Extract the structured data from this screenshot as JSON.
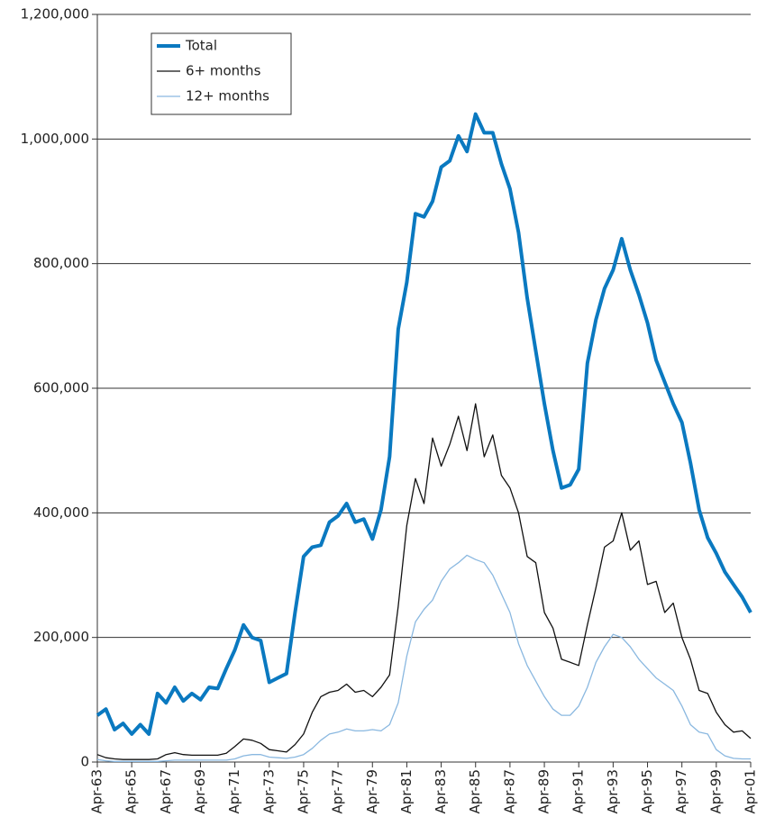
{
  "chart_data": {
    "type": "line",
    "x": [
      1963.25,
      1963.75,
      1964.25,
      1964.75,
      1965.25,
      1965.75,
      1966.25,
      1966.75,
      1967.25,
      1967.75,
      1968.25,
      1968.75,
      1969.25,
      1969.75,
      1970.25,
      1970.75,
      1971.25,
      1971.75,
      1972.25,
      1972.75,
      1973.25,
      1973.75,
      1974.25,
      1974.75,
      1975.25,
      1975.75,
      1976.25,
      1976.75,
      1977.25,
      1977.75,
      1978.25,
      1978.75,
      1979.25,
      1979.75,
      1980.25,
      1980.75,
      1981.25,
      1981.75,
      1982.25,
      1982.75,
      1983.25,
      1983.75,
      1984.25,
      1984.75,
      1985.25,
      1985.75,
      1986.25,
      1986.75,
      1987.25,
      1987.75,
      1988.25,
      1988.75,
      1989.25,
      1989.75,
      1990.25,
      1990.75,
      1991.25,
      1991.75,
      1992.25,
      1992.75,
      1993.25,
      1993.75,
      1994.25,
      1994.75,
      1995.25,
      1995.75,
      1996.25,
      1996.75,
      1997.25,
      1997.75,
      1998.25,
      1998.75,
      1999.25,
      1999.75,
      2000.25,
      2000.75,
      2001.25
    ],
    "series": [
      {
        "name": "Total",
        "color": "#0a79c0",
        "width": 4,
        "values": [
          75000,
          85000,
          52000,
          62000,
          45000,
          60000,
          45000,
          110000,
          95000,
          120000,
          98000,
          110000,
          100000,
          120000,
          118000,
          150000,
          180000,
          220000,
          200000,
          195000,
          128000,
          135000,
          142000,
          240000,
          330000,
          345000,
          348000,
          385000,
          395000,
          415000,
          385000,
          390000,
          358000,
          405000,
          490000,
          695000,
          770000,
          880000,
          875000,
          900000,
          955000,
          965000,
          1005000,
          980000,
          1040000,
          1010000,
          1010000,
          960000,
          920000,
          850000,
          745000,
          660000,
          575000,
          500000,
          440000,
          445000,
          470000,
          640000,
          710000,
          760000,
          790000,
          840000,
          790000,
          750000,
          705000,
          645000,
          610000,
          575000,
          545000,
          480000,
          405000,
          360000,
          335000,
          305000,
          285000,
          265000,
          240000
        ]
      },
      {
        "name": "6+ months",
        "color": "#111111",
        "width": 1.3,
        "values": [
          12000,
          7000,
          5000,
          4000,
          4000,
          4000,
          4000,
          5000,
          12000,
          15000,
          12000,
          11000,
          11000,
          11000,
          11000,
          14000,
          25000,
          37000,
          35000,
          30000,
          20000,
          18000,
          16000,
          28000,
          45000,
          80000,
          105000,
          112000,
          115000,
          125000,
          112000,
          115000,
          105000,
          120000,
          140000,
          250000,
          380000,
          455000,
          415000,
          520000,
          475000,
          510000,
          555000,
          500000,
          575000,
          490000,
          525000,
          460000,
          440000,
          400000,
          330000,
          320000,
          240000,
          215000,
          165000,
          160000,
          155000,
          220000,
          280000,
          345000,
          355000,
          400000,
          340000,
          355000,
          285000,
          290000,
          240000,
          255000,
          200000,
          165000,
          115000,
          110000,
          80000,
          60000,
          48000,
          50000,
          38000
        ]
      },
      {
        "name": "12+ months",
        "color": "#8ab8e0",
        "width": 1.3,
        "values": [
          4000,
          2000,
          1000,
          1000,
          1000,
          1000,
          1000,
          1000,
          2000,
          3000,
          3000,
          3000,
          3000,
          3000,
          3000,
          3000,
          5000,
          10000,
          12000,
          12000,
          8000,
          7000,
          6000,
          8000,
          12000,
          22000,
          35000,
          45000,
          48000,
          53000,
          50000,
          50000,
          52000,
          50000,
          60000,
          95000,
          170000,
          225000,
          245000,
          260000,
          290000,
          310000,
          320000,
          332000,
          325000,
          320000,
          300000,
          270000,
          240000,
          190000,
          155000,
          130000,
          105000,
          85000,
          75000,
          75000,
          90000,
          120000,
          160000,
          185000,
          205000,
          200000,
          185000,
          165000,
          150000,
          135000,
          125000,
          115000,
          90000,
          60000,
          48000,
          45000,
          20000,
          10000,
          6000,
          5000,
          5000
        ]
      }
    ],
    "xlim": [
      1963.25,
      2001.25
    ],
    "xticks": [
      {
        "value": 1963.25,
        "label": "Apr-63"
      },
      {
        "value": 1965.25,
        "label": "Apr-65"
      },
      {
        "value": 1967.25,
        "label": "Apr-67"
      },
      {
        "value": 1969.25,
        "label": "Apr-69"
      },
      {
        "value": 1971.25,
        "label": "Apr-71"
      },
      {
        "value": 1973.25,
        "label": "Apr-73"
      },
      {
        "value": 1975.25,
        "label": "Apr-75"
      },
      {
        "value": 1977.25,
        "label": "Apr-77"
      },
      {
        "value": 1979.25,
        "label": "Apr-79"
      },
      {
        "value": 1981.25,
        "label": "Apr-81"
      },
      {
        "value": 1983.25,
        "label": "Apr-83"
      },
      {
        "value": 1985.25,
        "label": "Apr-85"
      },
      {
        "value": 1987.25,
        "label": "Apr-87"
      },
      {
        "value": 1989.25,
        "label": "Apr-89"
      },
      {
        "value": 1991.25,
        "label": "Apr-91"
      },
      {
        "value": 1993.25,
        "label": "Apr-93"
      },
      {
        "value": 1995.25,
        "label": "Apr-95"
      },
      {
        "value": 1997.25,
        "label": "Apr-97"
      },
      {
        "value": 1999.25,
        "label": "Apr-99"
      },
      {
        "value": 2001.25,
        "label": "Apr-01"
      }
    ],
    "ylim": [
      0,
      1200000
    ],
    "yticks": [
      0,
      {
        "value": 200000,
        "label": "200,000"
      },
      {
        "value": 400000,
        "label": "400,000"
      },
      {
        "value": 600000,
        "label": "600,000"
      },
      {
        "value": 800000,
        "label": "800,000"
      },
      {
        "value": 1000000,
        "label": "1,000,000"
      },
      {
        "value": 1200000,
        "label": "1,200,000"
      }
    ],
    "grid": true,
    "legend": "upper-left"
  }
}
